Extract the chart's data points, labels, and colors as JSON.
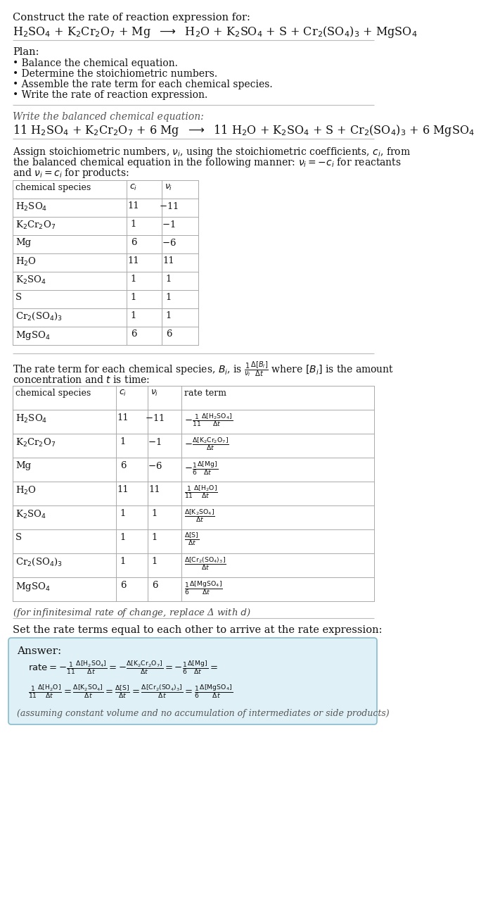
{
  "bg_color": "#ffffff",
  "title_line1": "Construct the rate of reaction expression for:",
  "rxn_unbal_parts": [
    [
      "H",
      "2",
      "SO",
      "4",
      " + K",
      "2",
      "Cr",
      "2",
      "O",
      "7",
      " + Mg ",
      "→",
      " H",
      "2",
      "O + K",
      "2",
      "SO",
      "4",
      " + S + Cr",
      "2",
      "(SO",
      "4",
      ")",
      "3",
      " + MgSO",
      "4"
    ]
  ],
  "plan_header": "Plan:",
  "plan_items": [
    "• Balance the chemical equation.",
    "• Determine the stoichiometric numbers.",
    "• Assemble the rate term for each chemical species.",
    "• Write the rate of reaction expression."
  ],
  "balanced_header": "Write the balanced chemical equation:",
  "stoich_para": [
    "Assign stoichiometric numbers, $\\nu_i$, using the stoichiometric coefficients, $c_i$, from",
    "the balanced chemical equation in the following manner: $\\nu_i = -c_i$ for reactants",
    "and $\\nu_i = c_i$ for products:"
  ],
  "table1_header": [
    "chemical species",
    "c_i",
    "v_i"
  ],
  "table1_rows": [
    [
      "H$_2$SO$_4$",
      "11",
      "$-$11"
    ],
    [
      "K$_2$Cr$_2$O$_7$",
      "1",
      "$-$1"
    ],
    [
      "Mg",
      "6",
      "$-$6"
    ],
    [
      "H$_2$O",
      "11",
      "11"
    ],
    [
      "K$_2$SO$_4$",
      "1",
      "1"
    ],
    [
      "S",
      "1",
      "1"
    ],
    [
      "Cr$_2$(SO$_4$)$_3$",
      "1",
      "1"
    ],
    [
      "MgSO$_4$",
      "6",
      "6"
    ]
  ],
  "rate_intro1": "The rate term for each chemical species, $B_i$, is $\\frac{1}{\\nu_i}\\frac{\\Delta[B_i]}{\\Delta t}$ where $[B_i]$ is the amount",
  "rate_intro2": "concentration and $t$ is time:",
  "table2_header": [
    "chemical species",
    "c_i",
    "v_i",
    "rate term"
  ],
  "table2_rows": [
    [
      "H$_2$SO$_4$",
      "11",
      "$-$11",
      "$-\\frac{1}{11}\\frac{\\Delta[\\mathrm{H_2SO_4}]}{\\Delta t}$"
    ],
    [
      "K$_2$Cr$_2$O$_7$",
      "1",
      "$-$1",
      "$-\\frac{\\Delta[\\mathrm{K_2Cr_2O_7}]}{\\Delta t}$"
    ],
    [
      "Mg",
      "6",
      "$-$6",
      "$-\\frac{1}{6}\\frac{\\Delta[\\mathrm{Mg}]}{\\Delta t}$"
    ],
    [
      "H$_2$O",
      "11",
      "11",
      "$\\frac{1}{11}\\frac{\\Delta[\\mathrm{H_2O}]}{\\Delta t}$"
    ],
    [
      "K$_2$SO$_4$",
      "1",
      "1",
      "$\\frac{\\Delta[\\mathrm{K_2SO_4}]}{\\Delta t}$"
    ],
    [
      "S",
      "1",
      "1",
      "$\\frac{\\Delta[\\mathrm{S}]}{\\Delta t}$"
    ],
    [
      "Cr$_2$(SO$_4$)$_3$",
      "1",
      "1",
      "$\\frac{\\Delta[\\mathrm{Cr_2(SO_4)_3}]}{\\Delta t}$"
    ],
    [
      "MgSO$_4$",
      "6",
      "6",
      "$\\frac{1}{6}\\frac{\\Delta[\\mathrm{MgSO_4}]}{\\Delta t}$"
    ]
  ],
  "infinitesimal_note": "(for infinitesimal rate of change, replace Δ with $d$)",
  "set_rate_text": "Set the rate terms equal to each other to arrive at the rate expression:",
  "answer_box_bg": "#dff0f7",
  "answer_box_edge": "#88bbcc",
  "answer_label": "Answer:",
  "answer_line1": "$\\mathrm{rate} = -\\frac{1}{11}\\frac{\\Delta[\\mathrm{H_2SO_4}]}{\\Delta t} = -\\frac{\\Delta[\\mathrm{K_2Cr_2O_7}]}{\\Delta t} = -\\frac{1}{6}\\frac{\\Delta[\\mathrm{Mg}]}{\\Delta t} =$",
  "answer_line2": "$\\frac{1}{11}\\frac{\\Delta[\\mathrm{H_2O}]}{\\Delta t} = \\frac{\\Delta[\\mathrm{K_2SO_4}]}{\\Delta t} = \\frac{\\Delta[\\mathrm{S}]}{\\Delta t} = \\frac{\\Delta[\\mathrm{Cr_2(SO_4)_3}]}{\\Delta t} = \\frac{1}{6}\\frac{\\Delta[\\mathrm{MgSO_4}]}{\\Delta t}$",
  "answer_footnote": "(assuming constant volume and no accumulation of intermediates or side products)"
}
